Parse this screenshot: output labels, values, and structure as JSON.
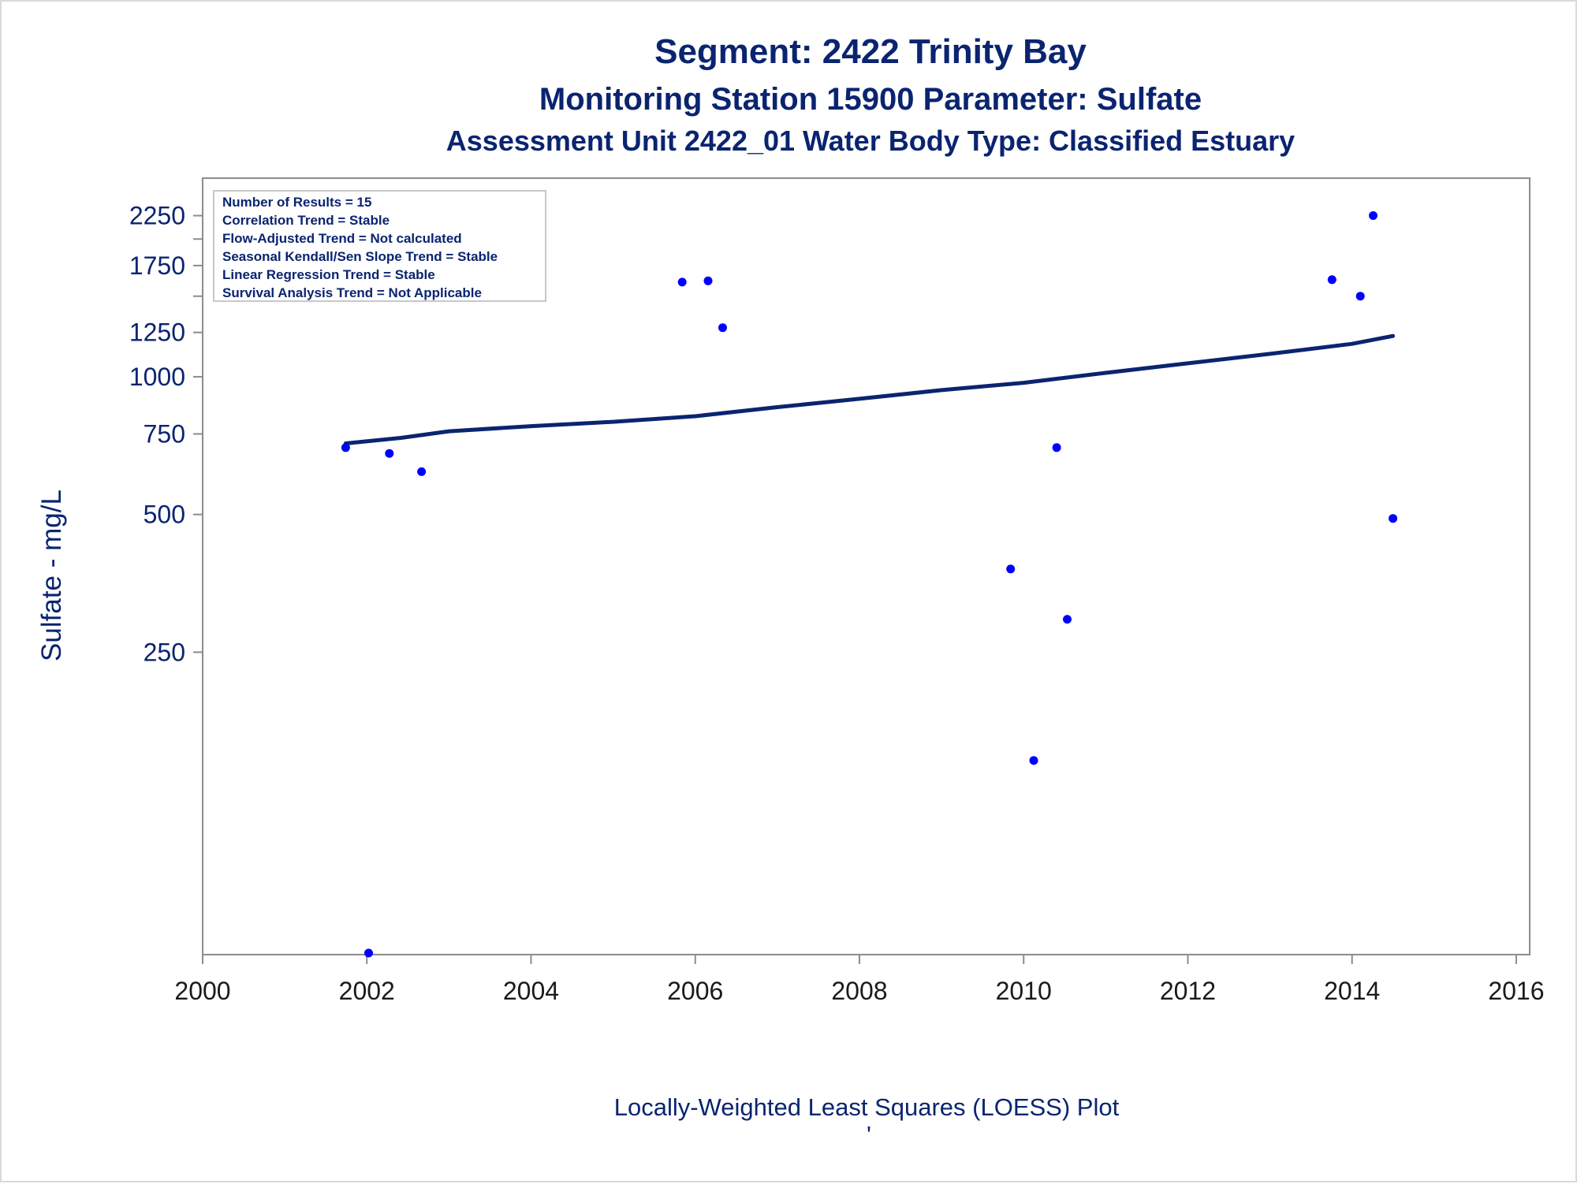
{
  "chart_data": {
    "type": "scatter",
    "title": "Segment: 2422  Trinity Bay",
    "subtitle": "Monitoring Station 15900 Parameter: Sulfate",
    "subtitle2": "Assessment Unit 2422_01   Water Body Type: Classified Estuary",
    "xlabel": "",
    "ylabel": "Sulfate - mg/L",
    "footnote": "Locally-Weighted Least Squares (LOESS) Plot",
    "footnote_mark": "'",
    "x_scale": "date",
    "y_scale": "log",
    "xlim": [
      "2000-01-01",
      "2016-03-01"
    ],
    "ylim": [
      55,
      2550
    ],
    "x_ticks": [
      "2000",
      "2002",
      "2004",
      "2006",
      "2008",
      "2010",
      "2012",
      "2014",
      "2016"
    ],
    "y_ticks": [
      250,
      500,
      750,
      1000,
      1250,
      1750,
      2250
    ],
    "y_ticks_display": [
      "250",
      "500",
      "750",
      "1000",
      "1250",
      "1750",
      "2250"
    ],
    "y_minor_ticks": [
      1500,
      2000
    ],
    "grid": false,
    "stats_box_placement": "top-left",
    "stats": [
      "Number of Results = 15",
      "Correlation Trend = Stable",
      "Flow-Adjusted Trend = Not calculated",
      "Seasonal Kendall/Sen Slope Trend = Stable",
      "Linear Regression Trend = Stable",
      "Survival Analysis Trend = Not Applicable"
    ],
    "series": [
      {
        "type": "scatter",
        "color": "#0000ff",
        "points": [
          {
            "x": "2001-09-29",
            "y": 700
          },
          {
            "x": "2002-01-09",
            "y": 55
          },
          {
            "x": "2002-04-11",
            "y": 680
          },
          {
            "x": "2002-09-01",
            "y": 620
          },
          {
            "x": "2005-11-04",
            "y": 1610
          },
          {
            "x": "2006-02-27",
            "y": 1620
          },
          {
            "x": "2006-05-03",
            "y": 1280
          },
          {
            "x": "2009-11-04",
            "y": 380
          },
          {
            "x": "2010-02-15",
            "y": 145
          },
          {
            "x": "2010-05-28",
            "y": 700
          },
          {
            "x": "2010-07-14",
            "y": 295
          },
          {
            "x": "2013-10-04",
            "y": 1630
          },
          {
            "x": "2014-02-07",
            "y": 1500
          },
          {
            "x": "2014-04-05",
            "y": 2250
          },
          {
            "x": "2014-07-02",
            "y": 490
          }
        ]
      },
      {
        "type": "line",
        "color": "#0a2470",
        "points": [
          {
            "x": "2001-09-29",
            "y": 715
          },
          {
            "x": "2002-06-01",
            "y": 735
          },
          {
            "x": "2003-01-01",
            "y": 760
          },
          {
            "x": "2004-01-01",
            "y": 780
          },
          {
            "x": "2005-01-01",
            "y": 797
          },
          {
            "x": "2006-01-01",
            "y": 820
          },
          {
            "x": "2007-01-01",
            "y": 858
          },
          {
            "x": "2008-01-01",
            "y": 895
          },
          {
            "x": "2009-01-01",
            "y": 935
          },
          {
            "x": "2010-01-01",
            "y": 970
          },
          {
            "x": "2011-01-01",
            "y": 1020
          },
          {
            "x": "2012-01-01",
            "y": 1070
          },
          {
            "x": "2013-01-01",
            "y": 1122
          },
          {
            "x": "2014-01-01",
            "y": 1180
          },
          {
            "x": "2014-07-02",
            "y": 1228
          }
        ]
      }
    ]
  }
}
